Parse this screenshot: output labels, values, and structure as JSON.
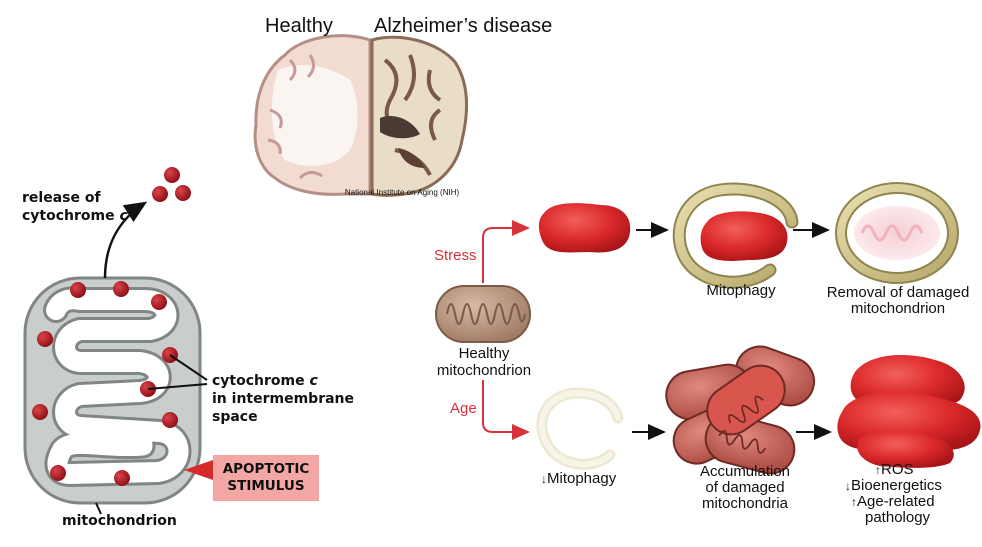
{
  "brain": {
    "healthy_label": "Healthy",
    "disease_label": "Alzheimer’s disease",
    "credit": "National Institute on Aging (NIH)"
  },
  "left": {
    "release_line1": "release of",
    "release_line2": "cytochrome ",
    "release_italic": "c",
    "cyto_line1": "cytochrome ",
    "cyto_italic": "c",
    "cyto_line2": "in intermembrane",
    "cyto_line3": "space",
    "apop_line1": "APOPTOTIC",
    "apop_line2": "STIMULUS",
    "mito_label": "mitochondrion"
  },
  "pathway": {
    "healthy_line1": "Healthy",
    "healthy_line2": "mitochondrion",
    "stress": "Stress",
    "age": "Age",
    "mitophagy": "Mitophagy",
    "removal_line1": "Removal of damaged",
    "removal_line2": "mitochondrion",
    "down_mitophagy": "Mitophagy",
    "accum_line1": "Accumulation",
    "accum_line2": "of damaged",
    "accum_line3": "mitochondria",
    "ros": "ROS",
    "bioenergetics": "Bioenergetics",
    "agerelated_line1": "Age-related",
    "agerelated_line2": "pathology"
  },
  "colors": {
    "red_arrow": "#d8333a",
    "mito_red": "#d92e2e",
    "membrane_gray": "#c9cdcc",
    "cyto_dot": "#a3141c",
    "stimulus_bg": "#f3a7a5",
    "healthy_mito": "#b8957c",
    "phagophore": "#d4c690"
  }
}
